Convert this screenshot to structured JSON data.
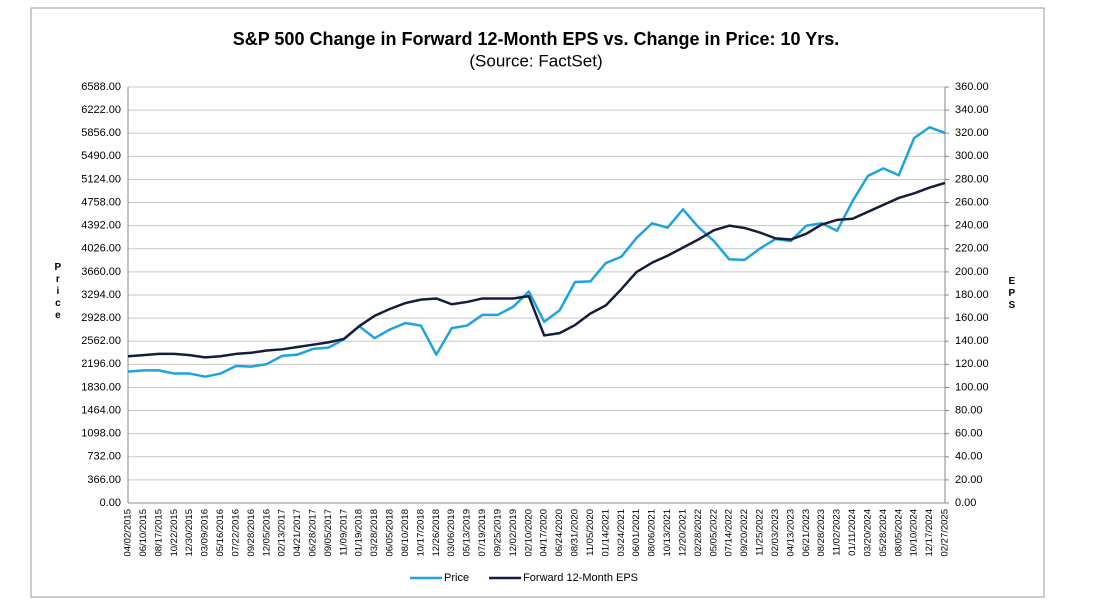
{
  "chart_data": {
    "type": "line",
    "title": "S&P 500 Change in Forward 12-Month EPS vs. Change in Price: 10 Yrs.",
    "subtitle": "(Source: FactSet)",
    "y_label": "Price",
    "y2_label": "EPS",
    "categories": [
      "04/02/2015",
      "06/10/2015",
      "08/17/2015",
      "10/22/2015",
      "12/30/2015",
      "03/09/2016",
      "05/16/2016",
      "07/22/2016",
      "09/28/2016",
      "12/05/2016",
      "02/13/2017",
      "04/21/2017",
      "06/28/2017",
      "09/05/2017",
      "11/09/2017",
      "01/19/2018",
      "03/28/2018",
      "06/05/2018",
      "08/10/2018",
      "10/17/2018",
      "12/26/2018",
      "03/06/2019",
      "05/13/2019",
      "07/19/2019",
      "09/25/2019",
      "12/02/2019",
      "02/10/2020",
      "04/17/2020",
      "06/24/2020",
      "08/31/2020",
      "11/05/2020",
      "01/14/2021",
      "03/24/2021",
      "06/01/2021",
      "08/06/2021",
      "10/13/2021",
      "12/20/2021",
      "02/28/2022",
      "05/05/2022",
      "07/14/2022",
      "09/20/2022",
      "11/25/2022",
      "02/03/2023",
      "04/13/2023",
      "06/21/2023",
      "08/28/2023",
      "11/02/2023",
      "01/11/2024",
      "03/20/2024",
      "05/28/2024",
      "08/05/2024",
      "10/10/2024",
      "12/17/2024",
      "02/27/2025"
    ],
    "series": [
      {
        "name": "Price",
        "color": "#1fa3dc",
        "values": [
          2080,
          2100,
          2100,
          2050,
          2050,
          2000,
          2050,
          2170,
          2160,
          2200,
          2330,
          2350,
          2440,
          2460,
          2590,
          2800,
          2610,
          2750,
          2850,
          2810,
          2350,
          2770,
          2810,
          2980,
          2980,
          3110,
          3350,
          2870,
          3050,
          3500,
          3510,
          3800,
          3900,
          4200,
          4430,
          4360,
          4650,
          4370,
          4150,
          3860,
          3850,
          4030,
          4180,
          4150,
          4390,
          4430,
          4310,
          4780,
          5180,
          5300,
          5190,
          5780,
          5950,
          5860
        ]
      },
      {
        "name": "Forward 12-Month EPS",
        "color": "#141e3c",
        "axis": "y2",
        "values": [
          127,
          128,
          129,
          129,
          128,
          126,
          127,
          129,
          130,
          132,
          133,
          135,
          137,
          139,
          142,
          153,
          162,
          168,
          173,
          176,
          177,
          172,
          174,
          177,
          177,
          177,
          179,
          145,
          147,
          154,
          164,
          171,
          185,
          200,
          208,
          214,
          221,
          228,
          236,
          240,
          238,
          234,
          229,
          228,
          233,
          241,
          245,
          246,
          252,
          258,
          264,
          268,
          273,
          277
        ]
      }
    ],
    "ylim": [
      0,
      6588
    ],
    "yticks": [
      {
        "value": 0,
        "label": "0.00"
      },
      {
        "value": 366,
        "label": "366.00"
      },
      {
        "value": 732,
        "label": "732.00"
      },
      {
        "value": 1098,
        "label": "1098.00"
      },
      {
        "value": 1464,
        "label": "1464.00"
      },
      {
        "value": 1830,
        "label": "1830.00"
      },
      {
        "value": 2196,
        "label": "2196.00"
      },
      {
        "value": 2562,
        "label": "2562.00"
      },
      {
        "value": 2928,
        "label": "2928.00"
      },
      {
        "value": 3294,
        "label": "3294.00"
      },
      {
        "value": 3660,
        "label": "3660.00"
      },
      {
        "value": 4026,
        "label": "4026.00"
      },
      {
        "value": 4392,
        "label": "4392.00"
      },
      {
        "value": 4758,
        "label": "4758.00"
      },
      {
        "value": 5124,
        "label": "5124.00"
      },
      {
        "value": 5490,
        "label": "5490.00"
      },
      {
        "value": 5856,
        "label": "5856.00"
      },
      {
        "value": 6222,
        "label": "6222.00"
      },
      {
        "value": 6588,
        "label": "6588.00"
      }
    ],
    "y2lim": [
      0,
      360
    ],
    "y2ticks": [
      {
        "value": 0,
        "label": "0.00"
      },
      {
        "value": 20,
        "label": "20.00"
      },
      {
        "value": 40,
        "label": "40.00"
      },
      {
        "value": 60,
        "label": "60.00"
      },
      {
        "value": 80,
        "label": "80.00"
      },
      {
        "value": 100,
        "label": "100.00"
      },
      {
        "value": 120,
        "label": "120.00"
      },
      {
        "value": 140,
        "label": "140.00"
      },
      {
        "value": 160,
        "label": "160.00"
      },
      {
        "value": 180,
        "label": "180.00"
      },
      {
        "value": 200,
        "label": "200.00"
      },
      {
        "value": 220,
        "label": "220.00"
      },
      {
        "value": 240,
        "label": "240.00"
      },
      {
        "value": 260,
        "label": "260.00"
      },
      {
        "value": 280,
        "label": "280.00"
      },
      {
        "value": 300,
        "label": "300.00"
      },
      {
        "value": 320,
        "label": "320.00"
      },
      {
        "value": 340,
        "label": "340.00"
      },
      {
        "value": 360,
        "label": "360.00"
      }
    ],
    "grid": true,
    "legend": "bottom"
  }
}
